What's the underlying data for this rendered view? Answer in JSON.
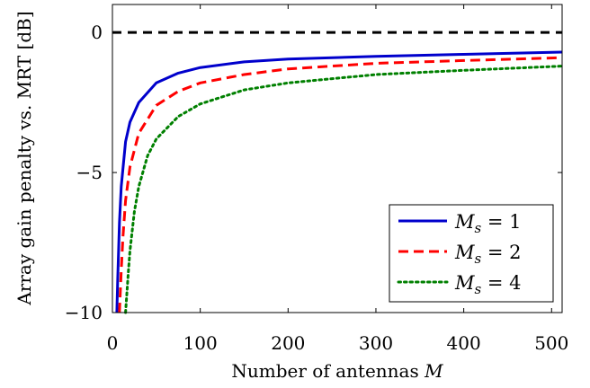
{
  "chart_data": {
    "type": "line",
    "xlabel": "Number of antennas M",
    "ylabel": "Array gain penalty vs. MRT [dB]",
    "xlim": [
      0,
      512
    ],
    "ylim": [
      -10,
      1
    ],
    "xticks": [
      0,
      100,
      200,
      300,
      400,
      500
    ],
    "yticks": [
      -10,
      -5,
      0
    ],
    "xtick_labels": [
      "0",
      "100",
      "200",
      "300",
      "400",
      "500"
    ],
    "ytick_labels": [
      "−10",
      "−5",
      "0"
    ],
    "grid": false,
    "legend_position": "lower-right",
    "reference_line": {
      "y": 0,
      "color": "#000000",
      "style": "dashed"
    },
    "series": [
      {
        "name": "M_s = 1",
        "label_base": "M",
        "label_sub": "s",
        "label_rest": " = 1",
        "color": "#0000cc",
        "style": "solid",
        "x": [
          5,
          6,
          8,
          10,
          15,
          20,
          30,
          50,
          75,
          100,
          150,
          200,
          300,
          400,
          512
        ],
        "y": [
          -10,
          -8.8,
          -6.8,
          -5.5,
          -3.9,
          -3.2,
          -2.5,
          -1.8,
          -1.45,
          -1.25,
          -1.05,
          -0.95,
          -0.85,
          -0.78,
          -0.7
        ]
      },
      {
        "name": "M_s = 2",
        "label_base": "M",
        "label_sub": "s",
        "label_rest": " = 2",
        "color": "#ff0000",
        "style": "dashed",
        "x": [
          8,
          10,
          12,
          15,
          20,
          30,
          50,
          75,
          100,
          150,
          200,
          300,
          400,
          512
        ],
        "y": [
          -10,
          -8.5,
          -7.3,
          -6.0,
          -4.8,
          -3.6,
          -2.6,
          -2.1,
          -1.8,
          -1.5,
          -1.3,
          -1.1,
          -1.0,
          -0.9
        ]
      },
      {
        "name": "M_s = 4",
        "label_base": "M",
        "label_sub": "s",
        "label_rest": " = 4",
        "color": "#008000",
        "style": "dotted",
        "x": [
          15,
          18,
          20,
          25,
          30,
          40,
          50,
          75,
          100,
          150,
          200,
          300,
          400,
          512
        ],
        "y": [
          -10,
          -8.6,
          -7.8,
          -6.4,
          -5.5,
          -4.4,
          -3.8,
          -3.0,
          -2.55,
          -2.05,
          -1.8,
          -1.5,
          -1.35,
          -1.2
        ]
      }
    ]
  }
}
